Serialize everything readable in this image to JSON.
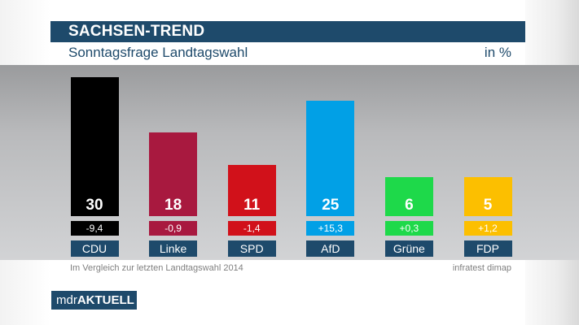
{
  "header": {
    "title": "SACHSEN-TREND",
    "subtitle": "Sonntagsfrage Landtagswahl",
    "unit": "in %"
  },
  "footer": {
    "comparison_note": "Im Vergleich zur letzten Landtagswahl 2014",
    "source": "infratest dimap"
  },
  "logo": {
    "prefix": "mdr",
    "suffix": "AKTUELL"
  },
  "colors": {
    "title_bar": "#1e4a6b",
    "party_label_bg": "#1e4a6b",
    "bar_text": "#ffffff"
  },
  "chart_data": {
    "type": "bar",
    "title": "SACHSEN-TREND",
    "subtitle": "Sonntagsfrage Landtagswahl",
    "unit": "in %",
    "categories": [
      "CDU",
      "Linke",
      "SPD",
      "AfD",
      "Grüne",
      "FDP"
    ],
    "values": [
      30,
      18,
      11,
      25,
      6,
      5
    ],
    "value_labels": [
      "30",
      "18",
      "11",
      "25",
      "6",
      "5"
    ],
    "change_labels": [
      "-9,4",
      "-0,9",
      "-1,4",
      "+15,3",
      "+0,3",
      "+1,2"
    ],
    "changes": [
      -9.4,
      -0.9,
      -1.4,
      15.3,
      0.3,
      1.2
    ],
    "colors": [
      "#000000",
      "#a8193f",
      "#d1111a",
      "#01a0e6",
      "#1ed94a",
      "#fcbf00"
    ],
    "ylim": [
      0,
      30
    ],
    "grid": false,
    "legend": "none"
  }
}
